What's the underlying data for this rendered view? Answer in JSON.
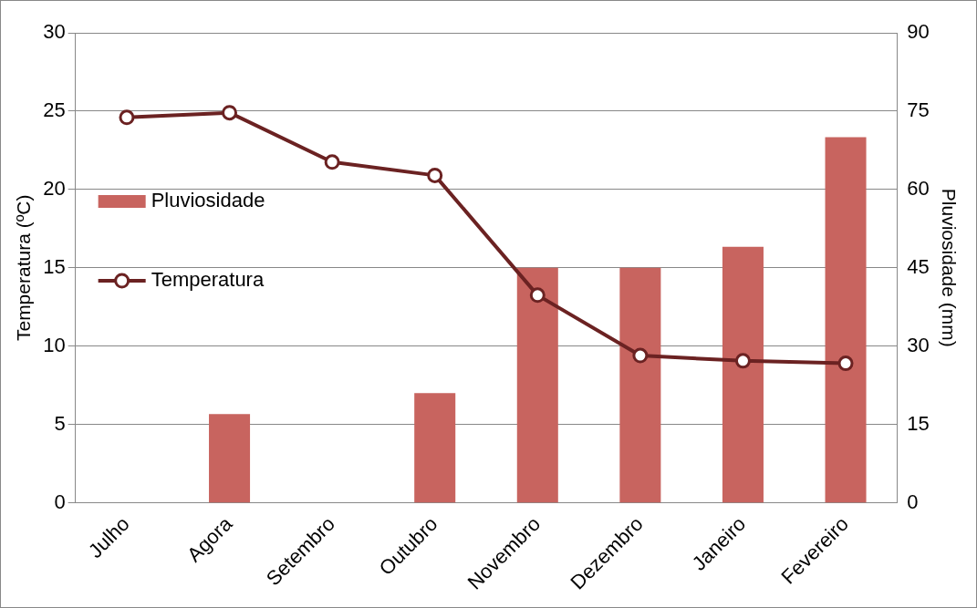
{
  "chart_data": {
    "type": "bar",
    "categories": [
      "Julho",
      "Agora",
      "Setembro",
      "Outubro",
      "Novembro",
      "Dezembro",
      "Janeiro",
      "Fevereiro"
    ],
    "ylabel": "Temperatura (ºC)",
    "y2label": "Pluviosidade (mm)",
    "ylim": [
      0,
      30
    ],
    "yticks": [
      0,
      5,
      10,
      15,
      20,
      25,
      30
    ],
    "y2lim": [
      0,
      90
    ],
    "y2ticks": [
      0,
      15,
      30,
      45,
      60,
      75,
      90
    ],
    "grid": "y",
    "legend": "left",
    "series": [
      {
        "name": "Pluviosidade",
        "axis": "y2",
        "color": "#c8645f",
        "values": [
          0,
          17,
          0,
          21,
          45,
          45,
          49,
          70
        ]
      },
      {
        "name": "Temperatura",
        "type": "line",
        "axis": "y",
        "color": "#6b2222",
        "marker": "circle",
        "line_style": "solid",
        "values": [
          24.6,
          24.9,
          21.75,
          20.9,
          13.25,
          9.4,
          9.06,
          8.9
        ]
      }
    ]
  }
}
